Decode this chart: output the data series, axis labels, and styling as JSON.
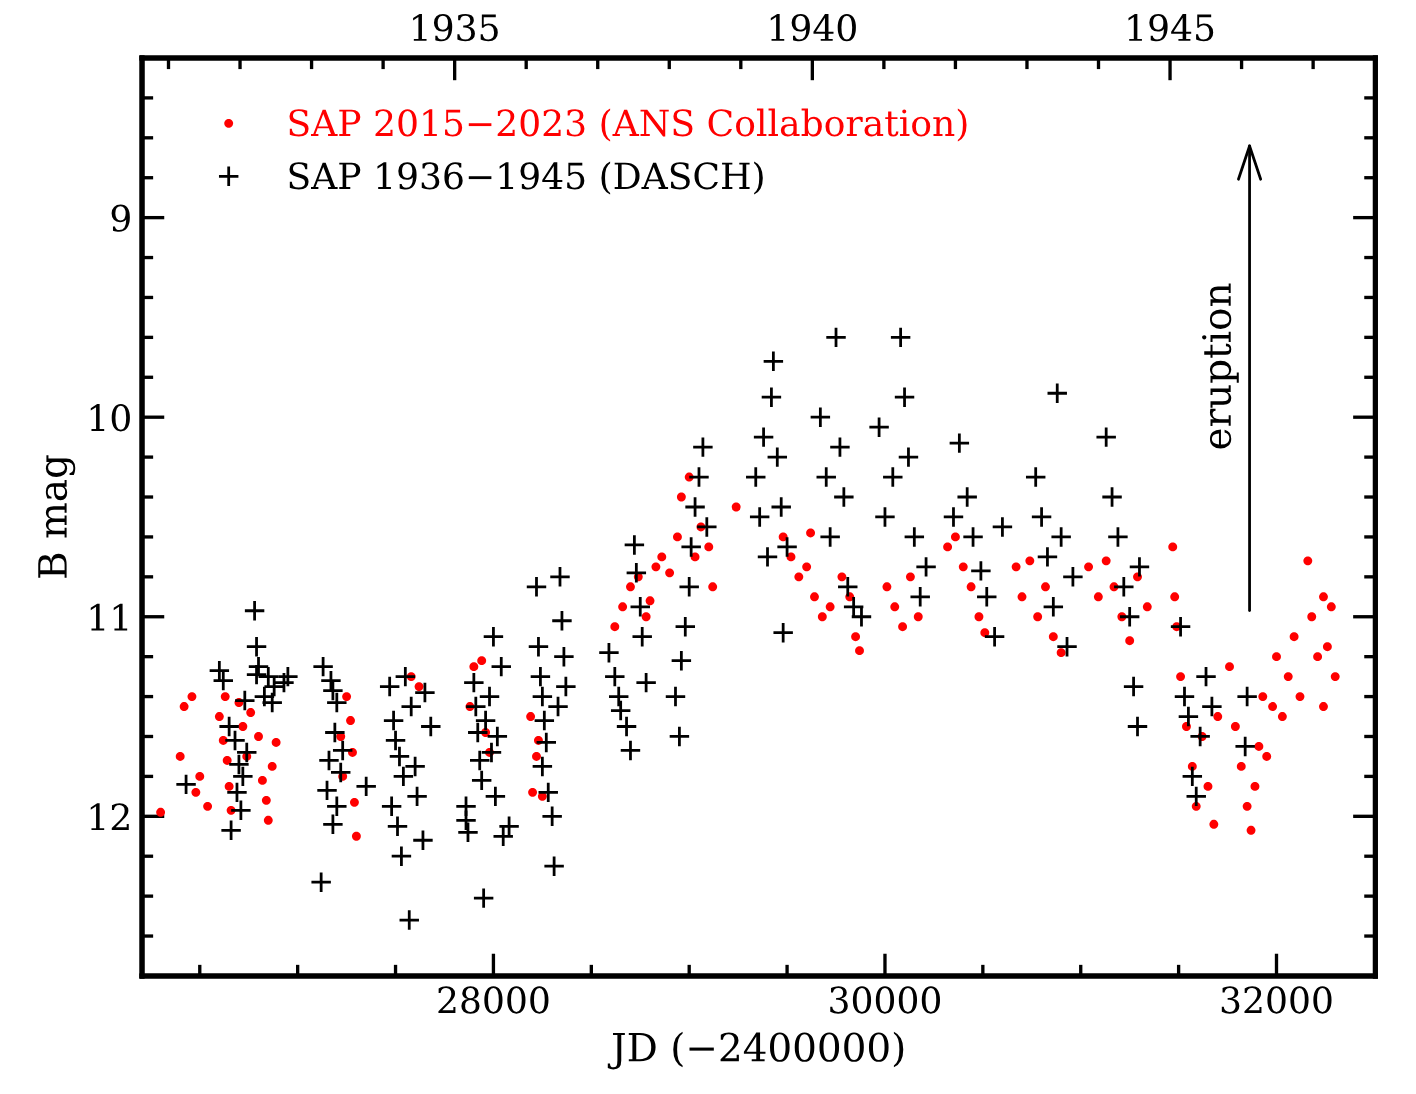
{
  "chart_data": {
    "type": "scatter",
    "xlabel": "JD (−2400000)",
    "ylabel": "B mag",
    "legend": "top left",
    "xlim": [
      26205,
      32505
    ],
    "ylim": [
      12.8,
      8.2
    ],
    "xticks": [
      {
        "value": 26500,
        "label": null
      },
      {
        "value": 27000,
        "label": null
      },
      {
        "value": 27500,
        "label": null
      },
      28000,
      {
        "value": 28500,
        "label": null
      },
      {
        "value": 29000,
        "label": null
      },
      {
        "value": 29500,
        "label": null
      },
      30000,
      {
        "value": 30500,
        "label": null
      },
      {
        "value": 31000,
        "label": null
      },
      {
        "value": 31500,
        "label": null
      },
      32000
    ],
    "yticks": [
      {
        "value": 8.4,
        "label": null
      },
      {
        "value": 8.6,
        "label": null
      },
      {
        "value": 8.8,
        "label": null
      },
      9,
      {
        "value": 9.2,
        "label": null
      },
      {
        "value": 9.4,
        "label": null
      },
      {
        "value": 9.6,
        "label": null
      },
      {
        "value": 9.8,
        "label": null
      },
      10,
      {
        "value": 10.2,
        "label": null
      },
      {
        "value": 10.4,
        "label": null
      },
      {
        "value": 10.6,
        "label": null
      },
      {
        "value": 10.8,
        "label": null
      },
      11,
      {
        "value": 11.2,
        "label": null
      },
      {
        "value": 11.4,
        "label": null
      },
      {
        "value": 11.6,
        "label": null
      },
      {
        "value": 11.8,
        "label": null
      },
      12,
      {
        "value": 12.2,
        "label": null
      },
      {
        "value": 12.4,
        "label": null
      },
      {
        "value": 12.6,
        "label": null
      }
    ],
    "x2lim": [
      1930.63,
      1947.87
    ],
    "x2ticks": [
      {
        "value": 1931,
        "label": null
      },
      {
        "value": 1932,
        "label": null
      },
      {
        "value": 1933,
        "label": null
      },
      {
        "value": 1934,
        "label": null
      },
      1935,
      {
        "value": 1936,
        "label": null
      },
      {
        "value": 1937,
        "label": null
      },
      {
        "value": 1938,
        "label": null
      },
      {
        "value": 1939,
        "label": null
      },
      1940,
      {
        "value": 1941,
        "label": null
      },
      {
        "value": 1942,
        "label": null
      },
      {
        "value": 1943,
        "label": null
      },
      {
        "value": 1944,
        "label": null
      },
      1945,
      {
        "value": 1946,
        "label": null
      },
      {
        "value": 1947,
        "label": null
      }
    ],
    "annotations": [
      "eruption"
    ],
    "series": [
      {
        "name": "SAP 2015−2023 (ANS Collaboration)",
        "color": "#ff0000",
        "marker": "circle",
        "x": [
          26300,
          26400,
          26420,
          26460,
          26480,
          26500,
          26540,
          26600,
          26620,
          26640,
          26650,
          26660,
          26630,
          26700,
          26720,
          26740,
          26760,
          26800,
          26820,
          26840,
          26850,
          26870,
          26890,
          27220,
          27230,
          27250,
          27270,
          27280,
          27290,
          27300,
          27580,
          27620,
          27880,
          27900,
          27940,
          27960,
          27980,
          28190,
          28200,
          28220,
          28230,
          28250,
          28620,
          28660,
          28700,
          28740,
          28780,
          28800,
          28830,
          28860,
          28900,
          28940,
          28960,
          29000,
          29030,
          29060,
          29100,
          29120,
          29240,
          29480,
          29520,
          29560,
          29600,
          29640,
          29680,
          29620,
          29720,
          29780,
          29820,
          29850,
          29870,
          30010,
          30050,
          30090,
          30130,
          30170,
          30320,
          30360,
          30400,
          30440,
          30480,
          30510,
          30670,
          30700,
          30740,
          30780,
          30820,
          30860,
          30900,
          31040,
          31090,
          31130,
          31170,
          31210,
          31250,
          31290,
          31340,
          31470,
          31480,
          31490,
          31510,
          31540,
          31570,
          31590,
          31620,
          31650,
          31680,
          31700,
          31760,
          31790,
          31820,
          31850,
          31870,
          31890,
          31910,
          31930,
          31950,
          31980,
          32000,
          32030,
          32060,
          32090,
          32120,
          32160,
          32180,
          32210,
          32240,
          32260,
          32280,
          32300,
          32240
        ],
        "values": [
          11.98,
          11.7,
          11.45,
          11.4,
          11.88,
          11.8,
          11.95,
          11.5,
          11.62,
          11.72,
          11.85,
          11.97,
          11.4,
          11.43,
          11.55,
          11.7,
          11.48,
          11.6,
          11.82,
          11.92,
          12.02,
          11.75,
          11.63,
          11.6,
          11.8,
          11.4,
          11.52,
          11.68,
          11.93,
          12.1,
          11.3,
          11.35,
          11.45,
          11.25,
          11.22,
          11.58,
          11.68,
          11.5,
          11.88,
          11.7,
          11.62,
          11.9,
          11.05,
          10.95,
          10.85,
          10.8,
          11.0,
          10.92,
          10.75,
          10.7,
          10.78,
          10.6,
          10.4,
          10.3,
          10.7,
          10.55,
          10.65,
          10.85,
          10.45,
          10.6,
          10.7,
          10.8,
          10.75,
          10.9,
          11.0,
          10.58,
          10.95,
          10.8,
          10.9,
          11.1,
          11.17,
          10.85,
          10.95,
          11.05,
          10.8,
          11.0,
          10.65,
          10.6,
          10.75,
          10.85,
          11.0,
          11.08,
          10.75,
          10.9,
          10.72,
          11.0,
          10.85,
          11.1,
          11.18,
          10.75,
          10.9,
          10.72,
          10.85,
          11.0,
          11.12,
          10.8,
          10.95,
          10.65,
          10.9,
          11.05,
          11.3,
          11.55,
          11.75,
          11.95,
          11.6,
          11.85,
          12.04,
          11.5,
          11.25,
          11.55,
          11.75,
          11.95,
          12.07,
          11.85,
          11.65,
          11.4,
          11.7,
          11.45,
          11.2,
          11.5,
          11.3,
          11.1,
          11.4,
          10.72,
          11.0,
          11.2,
          10.9,
          11.15,
          10.95,
          11.3,
          11.45
        ]
      },
      {
        "name": "SAP 1936−1945 (DASCH)",
        "color": "#000000",
        "marker": "cross",
        "x": [
          26430,
          26600,
          26620,
          26650,
          26680,
          26700,
          26720,
          26690,
          26710,
          26660,
          26730,
          26740,
          26780,
          26790,
          26800,
          26790,
          26850,
          26880,
          26870,
          26930,
          26950,
          26830,
          27120,
          27130,
          27170,
          27180,
          27200,
          27190,
          27160,
          27220,
          27150,
          27200,
          27180,
          27230,
          27350,
          27470,
          27490,
          27500,
          27520,
          27540,
          27480,
          27510,
          27530,
          27550,
          27570,
          27580,
          27600,
          27610,
          27640,
          27650,
          27680,
          27860,
          27860,
          27870,
          27900,
          27910,
          27920,
          27930,
          27940,
          27950,
          27960,
          27980,
          27990,
          28000,
          28010,
          28020,
          28040,
          28050,
          28080,
          28220,
          28230,
          28240,
          28250,
          28260,
          28270,
          28250,
          28280,
          28300,
          28310,
          28340,
          28350,
          28360,
          28370,
          28330,
          28590,
          28620,
          28640,
          28650,
          28680,
          28700,
          28720,
          28730,
          28750,
          28760,
          28780,
          28930,
          28950,
          28960,
          28980,
          29000,
          29010,
          29030,
          29050,
          29070,
          29090,
          29340,
          29360,
          29380,
          29400,
          29420,
          29430,
          29450,
          29470,
          29480,
          29500,
          29670,
          29700,
          29720,
          29750,
          29770,
          29790,
          29810,
          29840,
          29880,
          29970,
          30000,
          30040,
          30080,
          30100,
          30120,
          30150,
          30180,
          30210,
          30350,
          30380,
          30420,
          30450,
          30490,
          30520,
          30560,
          30600,
          30770,
          30800,
          30830,
          30860,
          30880,
          30900,
          30930,
          30960,
          31130,
          31160,
          31190,
          31220,
          31250,
          31270,
          31290,
          31300,
          31510,
          31530,
          31550,
          31570,
          31590,
          31610,
          31640,
          31670,
          31850,
          31840
        ],
        "values": [
          11.84,
          11.27,
          11.32,
          11.55,
          11.62,
          11.74,
          11.8,
          11.88,
          11.97,
          12.07,
          11.42,
          11.68,
          10.97,
          11.15,
          11.25,
          11.29,
          11.3,
          11.35,
          11.43,
          11.33,
          11.3,
          11.4,
          12.33,
          11.25,
          11.32,
          11.37,
          11.43,
          11.58,
          11.72,
          11.78,
          11.87,
          11.95,
          12.04,
          11.67,
          11.85,
          11.35,
          11.52,
          11.62,
          11.7,
          11.8,
          11.95,
          12.05,
          12.2,
          11.3,
          12.52,
          11.45,
          11.75,
          11.9,
          12.12,
          11.38,
          11.55,
          11.95,
          12.02,
          12.08,
          11.33,
          11.45,
          11.58,
          11.72,
          11.82,
          12.41,
          11.52,
          11.4,
          11.68,
          11.1,
          11.9,
          11.6,
          11.25,
          12.1,
          12.05,
          10.85,
          11.15,
          11.3,
          11.4,
          11.52,
          11.63,
          11.75,
          11.88,
          12.0,
          12.25,
          10.8,
          11.02,
          11.2,
          11.35,
          11.45,
          11.18,
          11.3,
          11.4,
          11.47,
          11.55,
          11.67,
          10.64,
          10.78,
          10.95,
          11.1,
          11.33,
          11.4,
          11.6,
          11.22,
          11.05,
          10.85,
          10.65,
          10.45,
          10.3,
          10.15,
          10.55,
          10.3,
          10.5,
          10.1,
          10.7,
          9.9,
          9.72,
          10.2,
          10.45,
          11.08,
          10.65,
          10.0,
          10.3,
          10.6,
          9.6,
          10.15,
          10.4,
          10.85,
          10.95,
          11.0,
          10.05,
          10.5,
          10.3,
          9.6,
          9.9,
          10.2,
          10.6,
          10.9,
          10.75,
          10.5,
          10.13,
          10.4,
          10.6,
          10.77,
          10.9,
          11.1,
          10.55,
          10.3,
          10.5,
          10.7,
          10.95,
          9.88,
          10.6,
          11.15,
          10.8,
          10.1,
          10.4,
          10.6,
          10.85,
          11.0,
          11.35,
          11.55,
          10.75,
          11.05,
          11.4,
          11.5,
          11.8,
          11.9,
          11.6,
          11.3,
          11.45,
          11.4,
          11.65
        ]
      }
    ]
  }
}
